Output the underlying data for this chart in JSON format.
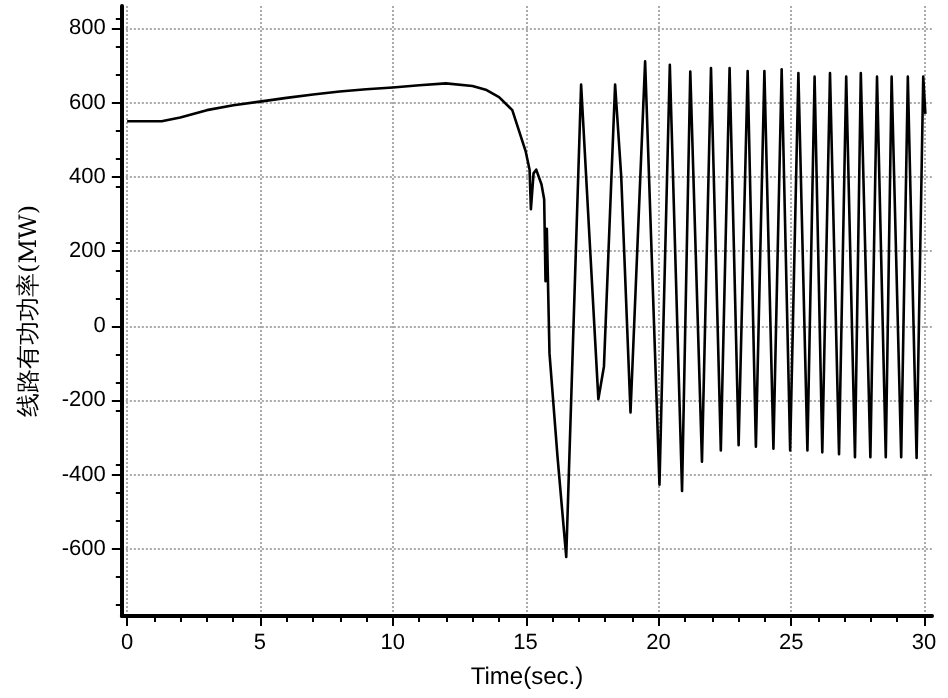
{
  "chart_data": {
    "type": "line",
    "xlabel": "Time(sec.)",
    "ylabel": "线路有功功率(MW)",
    "xlim": [
      -0.2,
      30.3
    ],
    "xticks": [
      0,
      5,
      10,
      15,
      20,
      25,
      30
    ],
    "ylim": [
      -780,
      860
    ],
    "yticks": [
      -600,
      -400,
      -200,
      0,
      200,
      400,
      600,
      800
    ],
    "grid": true,
    "marker": "none",
    "line_style": "solid",
    "series": [
      {
        "color": "#000000",
        "x": [
          0,
          1.3,
          2,
          3,
          4,
          5,
          6,
          7,
          8,
          9,
          10,
          11,
          12,
          13,
          13.5,
          14,
          14.5,
          15,
          15.15,
          15.2,
          15.3,
          15.4,
          15.6,
          15.7,
          15.75,
          15.8,
          15.9,
          16.2,
          16.53,
          17.09,
          17.3,
          17.74,
          17.95,
          18.37,
          18.6,
          18.95,
          19.5,
          20.04,
          20.43,
          20.89,
          21.2,
          21.64,
          21.98,
          22.35,
          22.68,
          23.02,
          23.36,
          23.67,
          23.99,
          24.33,
          24.64,
          24.96,
          25.27,
          25.61,
          25.88,
          26.17,
          26.46,
          26.8,
          27.07,
          27.4,
          27.62,
          27.98,
          28.23,
          28.56,
          28.78,
          29.14,
          29.39,
          29.72,
          29.97,
          30.05
        ],
        "values": [
          550,
          550,
          560,
          580,
          593,
          603,
          613,
          622,
          630,
          636,
          641,
          647,
          652,
          645,
          635,
          615,
          580,
          470,
          420,
          314,
          410,
          420,
          380,
          340,
          120,
          261,
          -74,
          -350,
          -621,
          649,
          375,
          -197,
          -109,
          649,
          402,
          -233,
          711,
          -427,
          702,
          -444,
          684,
          -365,
          693,
          -335,
          693,
          -321,
          685,
          -325,
          685,
          -330,
          690,
          -335,
          680,
          -335,
          670,
          -340,
          680,
          -345,
          670,
          -353,
          680,
          -353,
          670,
          -353,
          670,
          -353,
          670,
          -355,
          670,
          570
        ]
      }
    ]
  }
}
